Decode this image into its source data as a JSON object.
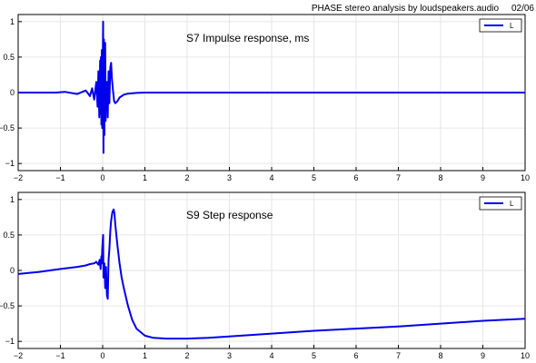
{
  "header": {
    "title": "PHASE stereo analysis by loudspeakers.audio",
    "date": "02/06"
  },
  "colors": {
    "series": "#0000ee",
    "grid": "#e6e6e6",
    "axis": "#000000"
  },
  "chart_data": [
    {
      "type": "line",
      "title": "S7   Impulse response, ms",
      "xlim": [
        -2,
        10
      ],
      "ylim": [
        -1.1,
        1.1
      ],
      "xticks": [
        -2,
        -1,
        0,
        1,
        2,
        3,
        4,
        5,
        6,
        7,
        8,
        9,
        10
      ],
      "yticks": [
        -1,
        -0.5,
        0,
        0.5,
        1
      ],
      "grid": true,
      "legend_position": "top-right",
      "series": [
        {
          "name": "L",
          "x": [
            -2,
            -1.1,
            -0.9,
            -0.6,
            -0.4,
            -0.3,
            -0.25,
            -0.2,
            -0.15,
            -0.12,
            -0.1,
            -0.08,
            -0.06,
            -0.05,
            -0.04,
            -0.03,
            -0.02,
            -0.01,
            0,
            0.01,
            0.02,
            0.03,
            0.04,
            0.05,
            0.06,
            0.07,
            0.08,
            0.09,
            0.1,
            0.12,
            0.14,
            0.16,
            0.18,
            0.2,
            0.22,
            0.24,
            0.27,
            0.3,
            0.35,
            0.4,
            0.5,
            0.6,
            0.8,
            1.0,
            1.3,
            1.6,
            2.0,
            3,
            4,
            5,
            6,
            7,
            8,
            9,
            10
          ],
          "y": [
            0,
            0,
            0.01,
            -0.02,
            0.03,
            -0.05,
            0.06,
            -0.1,
            0.15,
            -0.2,
            0.3,
            -0.35,
            0.45,
            -0.3,
            0.5,
            -0.45,
            0.6,
            -0.5,
            0.3,
            1.0,
            -0.85,
            0.75,
            -0.6,
            0.2,
            0.7,
            -0.4,
            0.1,
            -0.2,
            0.15,
            -0.35,
            0.3,
            -0.15,
            0.35,
            0.42,
            0.2,
            0.05,
            -0.12,
            -0.15,
            -0.12,
            -0.07,
            -0.03,
            -0.015,
            -0.005,
            0,
            0,
            0,
            0,
            0,
            0,
            0,
            0,
            0,
            0,
            0,
            0
          ]
        }
      ]
    },
    {
      "type": "line",
      "title": "S9   Step response",
      "xlim": [
        -2,
        10
      ],
      "ylim": [
        -1.1,
        1.1
      ],
      "xticks": [
        -2,
        -1,
        0,
        1,
        2,
        3,
        4,
        5,
        6,
        7,
        8,
        9,
        10
      ],
      "yticks": [
        -1,
        -0.5,
        0,
        0.5,
        1
      ],
      "grid": true,
      "legend_position": "top-right",
      "series": [
        {
          "name": "L",
          "x": [
            -2,
            -1.5,
            -1,
            -0.6,
            -0.4,
            -0.3,
            -0.2,
            -0.15,
            -0.1,
            -0.07,
            -0.05,
            -0.03,
            -0.02,
            -0.01,
            0,
            0.01,
            0.02,
            0.04,
            0.06,
            0.08,
            0.1,
            0.12,
            0.14,
            0.16,
            0.18,
            0.2,
            0.23,
            0.26,
            0.28,
            0.3,
            0.35,
            0.4,
            0.45,
            0.5,
            0.6,
            0.7,
            0.8,
            1.0,
            1.2,
            1.5,
            2.0,
            2.5,
            3,
            4,
            5,
            6,
            7,
            8,
            9,
            10
          ],
          "y": [
            -0.05,
            -0.02,
            0.02,
            0.05,
            0.07,
            0.09,
            0.1,
            0.12,
            0.08,
            0.15,
            0.02,
            0.2,
            0.1,
            0.3,
            0.4,
            0.5,
            -0.1,
            0.1,
            -0.25,
            0.05,
            -0.35,
            -0.4,
            0.15,
            0.3,
            0.55,
            0.7,
            0.82,
            0.86,
            0.8,
            0.65,
            0.35,
            0.1,
            -0.1,
            -0.25,
            -0.5,
            -0.7,
            -0.82,
            -0.92,
            -0.95,
            -0.96,
            -0.96,
            -0.95,
            -0.93,
            -0.89,
            -0.85,
            -0.82,
            -0.79,
            -0.75,
            -0.71,
            -0.68
          ]
        }
      ]
    }
  ]
}
